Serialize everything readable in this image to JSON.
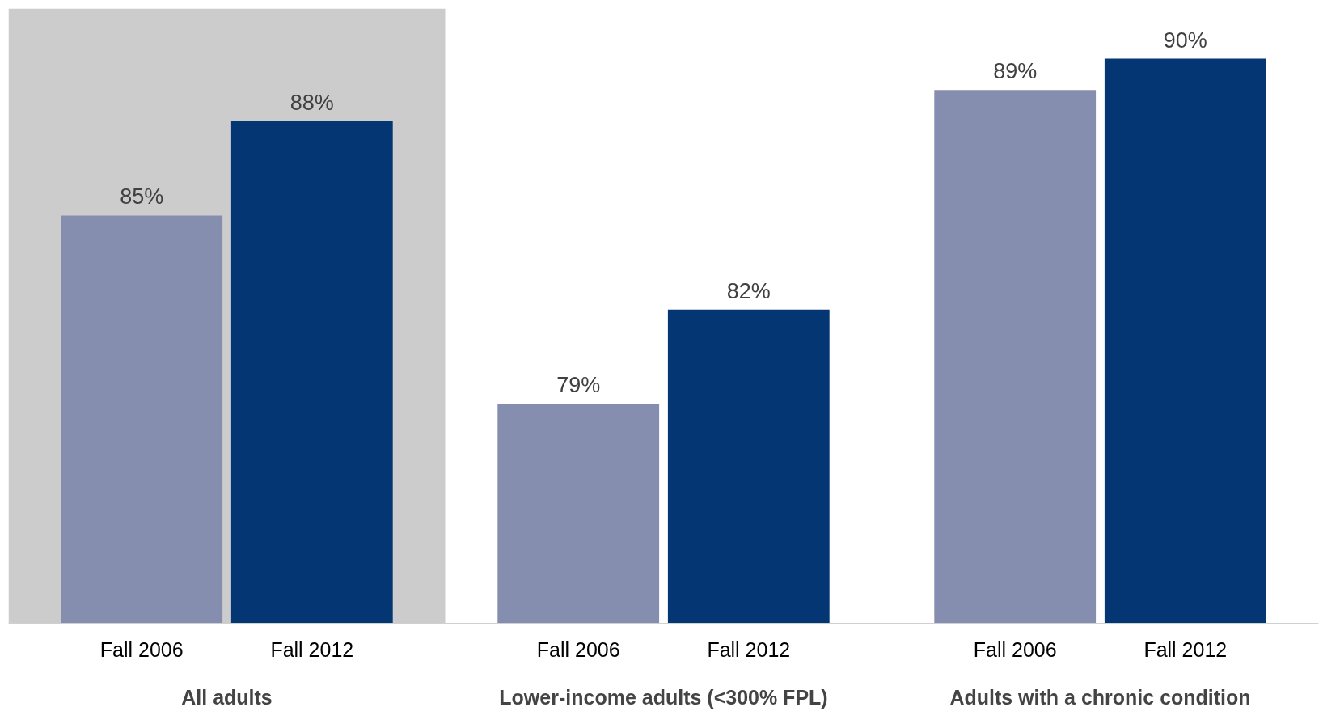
{
  "chart_data": {
    "type": "bar",
    "categories": [
      "All adults",
      "Lower-income adults (<300% FPL)",
      "Adults with a chronic condition"
    ],
    "series": [
      {
        "name": "Fall 2006",
        "color": "#858eae",
        "values": [
          85,
          79,
          89
        ],
        "value_labels": [
          "85%",
          "79%",
          "89%"
        ]
      },
      {
        "name": "Fall 2012",
        "color": "#053674",
        "values": [
          88,
          82,
          90
        ],
        "value_labels": [
          "88%",
          "82%",
          "90%"
        ]
      }
    ],
    "ylim": [
      72,
      91.6
    ],
    "legend": false,
    "grid": false,
    "bands": [
      {
        "axis": "x",
        "from": "All adults",
        "to": "All adults",
        "color": "#cccccc"
      }
    ]
  }
}
